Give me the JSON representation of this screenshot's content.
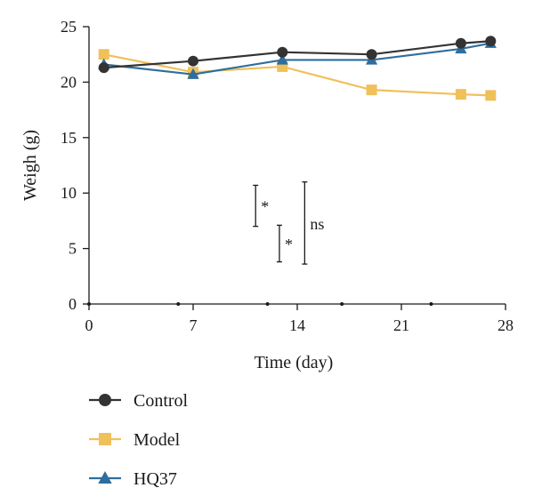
{
  "chart_data": {
    "type": "line",
    "xlabel": "Time (day)",
    "ylabel": "Weigh (g)",
    "xlim": [
      0,
      28
    ],
    "ylim": [
      0,
      25
    ],
    "xticks": [
      0,
      7,
      14,
      21,
      28
    ],
    "yticks": [
      0,
      5,
      10,
      15,
      20,
      25
    ],
    "grid": false,
    "legend_position": "bottom-left",
    "series": [
      {
        "name": "Control",
        "marker": "circle",
        "color": "#333333",
        "x": [
          1,
          7,
          13,
          19,
          25,
          27
        ],
        "y": [
          21.3,
          21.9,
          22.7,
          22.5,
          23.5,
          23.7
        ]
      },
      {
        "name": "Model",
        "marker": "square",
        "color": "#f0c05a",
        "x": [
          1,
          7,
          13,
          19,
          25,
          27
        ],
        "y": [
          22.5,
          20.9,
          21.4,
          19.3,
          18.9,
          18.8
        ]
      },
      {
        "name": "HQ37",
        "marker": "triangle",
        "color": "#2e6e9e",
        "x": [
          1,
          7,
          13,
          19,
          25,
          27
        ],
        "y": [
          21.6,
          20.7,
          22.0,
          22.0,
          23.0,
          23.5
        ]
      }
    ],
    "annotations": [
      {
        "label": "*",
        "x": 11.2,
        "y_range": [
          7.0,
          10.7
        ]
      },
      {
        "label": "*",
        "x": 12.8,
        "y_range": [
          3.8,
          7.1
        ]
      },
      {
        "label": "ns",
        "x": 14.5,
        "y_range": [
          3.6,
          11.0
        ]
      }
    ],
    "baseline_dots_x": [
      6,
      12,
      17,
      23
    ]
  }
}
